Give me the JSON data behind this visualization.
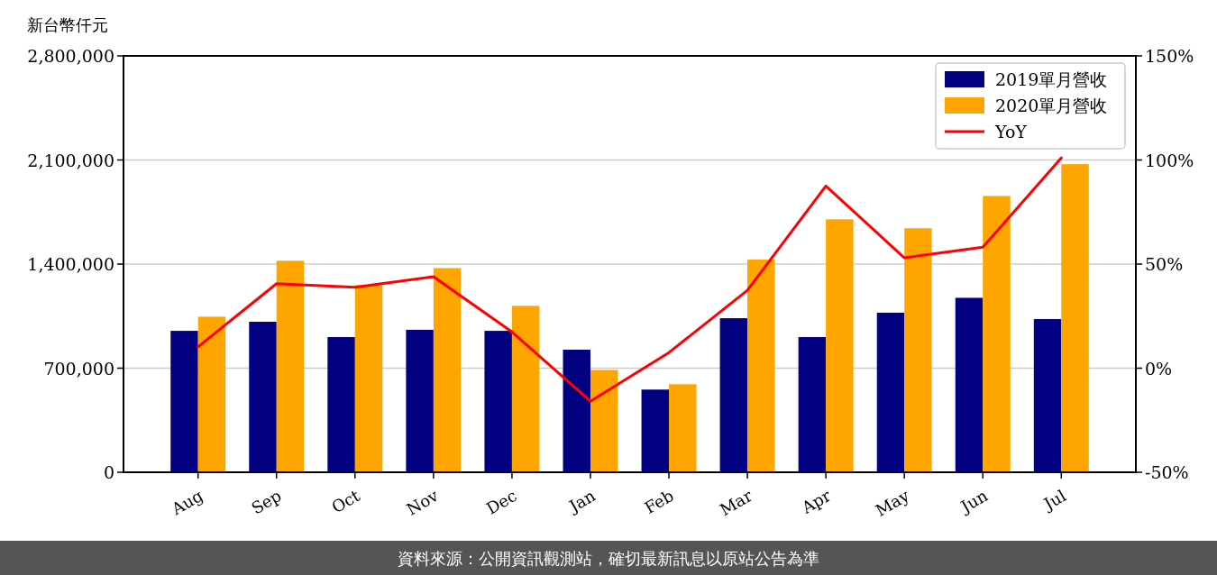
{
  "chart_data": {
    "type": "bar",
    "ylabel": "新台幣仟元",
    "categories": [
      "Aug",
      "Sep",
      "Oct",
      "Nov",
      "Dec",
      "Jan",
      "Feb",
      "Mar",
      "Apr",
      "May",
      "Jun",
      "Jul"
    ],
    "series": [
      {
        "name": "2019單月營收",
        "color": "#000080",
        "values": [
          951000,
          1012000,
          909000,
          958000,
          951000,
          824000,
          556000,
          1036000,
          909000,
          1073000,
          1173000,
          1030000
        ]
      },
      {
        "name": "2020單月營收",
        "color": "#ffa500",
        "values": [
          1046000,
          1422000,
          1259000,
          1373000,
          1119000,
          688000,
          592000,
          1430000,
          1701000,
          1641000,
          1858000,
          2072000
        ]
      },
      {
        "name": "YoY",
        "type": "line",
        "axis": "y2",
        "color": "#ff0000",
        "values": [
          10.2,
          40.6,
          38.9,
          43.9,
          17.4,
          -15.9,
          7.5,
          37.4,
          87.5,
          53.0,
          58.1,
          101.0
        ]
      }
    ],
    "ylim": [
      0,
      2800000
    ],
    "yticks": [
      {
        "value": 0,
        "label": "0"
      },
      {
        "value": 700000,
        "label": "700,000"
      },
      {
        "value": 1400000,
        "label": "1,400,000"
      },
      {
        "value": 2100000,
        "label": "2,100,000"
      },
      {
        "value": 2800000,
        "label": "2,800,000"
      }
    ],
    "y2lim": [
      -50,
      150
    ],
    "y2ticks": [
      {
        "value": -50,
        "label": "-50%"
      },
      {
        "value": 0,
        "label": "0%"
      },
      {
        "value": 50,
        "label": "50%"
      },
      {
        "value": 100,
        "label": "100%"
      },
      {
        "value": 150,
        "label": "150%"
      }
    ],
    "grid": "y",
    "legend": "top right",
    "annotations": [
      "資料來源：公開資訊觀測站，確切最新訊息以原站公告為準"
    ]
  }
}
